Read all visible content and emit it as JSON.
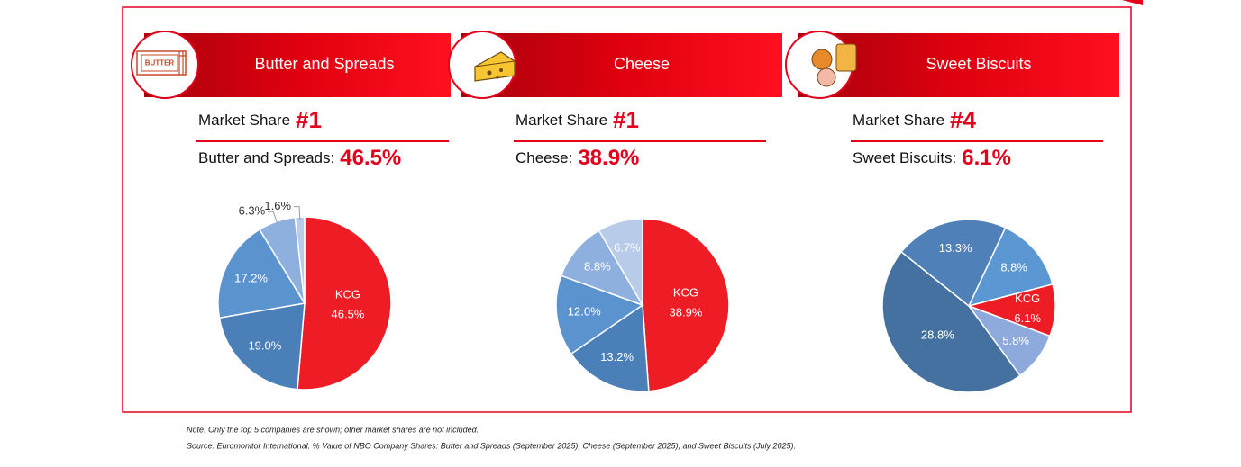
{
  "chart_data": [
    {
      "type": "pie",
      "title": "Butter and Spreads",
      "share_label": "Market Share",
      "rank": "#1",
      "segment_label": "Butter and Spreads:",
      "segment_share": "46.5%",
      "categories": [
        "KCG",
        null,
        null,
        null,
        null
      ],
      "values": [
        46.5,
        19.0,
        17.2,
        6.3,
        1.6
      ],
      "value_labels": [
        "46.5%",
        "19.0%",
        "17.2%",
        "6.3%",
        "1.6%"
      ],
      "colors": [
        "#ee1c25",
        "#4a7fb8",
        "#5b93cf",
        "#8eb0de",
        "#b8cbe8"
      ],
      "start_angle": 0
    },
    {
      "type": "pie",
      "title": "Cheese",
      "share_label": "Market Share",
      "rank": "#1",
      "segment_label": "Cheese:",
      "segment_share": "38.9%",
      "categories": [
        "KCG",
        null,
        null,
        null,
        null
      ],
      "values": [
        38.9,
        13.2,
        12.0,
        8.8,
        6.7
      ],
      "value_labels": [
        "38.9%",
        "13.2%",
        "12.0%",
        "8.8%",
        "6.7%"
      ],
      "colors": [
        "#ee1c25",
        "#4a7fb8",
        "#5b93cf",
        "#8eb0de",
        "#b8cbe8"
      ],
      "start_angle": 0
    },
    {
      "type": "pie",
      "title": "Sweet Biscuits",
      "share_label": "Market Share",
      "rank": "#4",
      "segment_label": "Sweet Biscuits:",
      "segment_share": "6.1%",
      "categories": [
        null,
        "KCG",
        null,
        null,
        null
      ],
      "values": [
        8.8,
        6.1,
        5.8,
        28.8,
        13.3
      ],
      "value_labels": [
        "8.8%",
        "6.1%",
        "5.8%",
        "28.8%",
        "13.3%"
      ],
      "colors": [
        "#5b97d3",
        "#ee1c25",
        "#8eaadc",
        "#44719f",
        "#4f80b8"
      ],
      "start_angle": 25
    }
  ],
  "icon_text": "BUTTER",
  "notes": [
    "Note: Only the top 5 companies are shown; other market shares are not included.",
    "Source: Euromonitor International. % Value of NBO Company Shares: Butter and Spreads (September 2025), Cheese (September 2025), and Sweet Biscuits (July 2025)."
  ]
}
